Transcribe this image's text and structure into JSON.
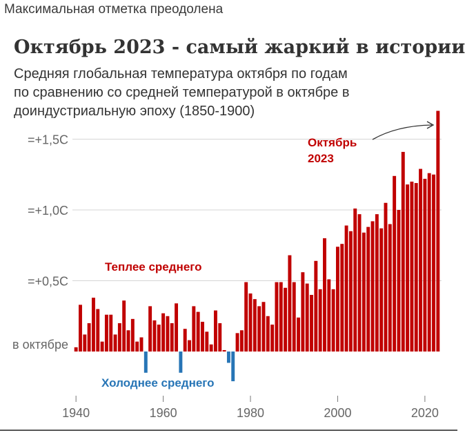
{
  "headline": "Максимальная отметка преодолена",
  "chart_data": {
    "type": "bar",
    "title": "Октябрь 2023 - самый жаркий в истории",
    "subtitle": [
      "Средняя глобальная температура октября по годам",
      "по сравнению со средней температурой в октябре в",
      "доиндустриальную эпоху (1850-1900)"
    ],
    "x": [
      1940,
      1941,
      1942,
      1943,
      1944,
      1945,
      1946,
      1947,
      1948,
      1949,
      1950,
      1951,
      1952,
      1953,
      1954,
      1955,
      1956,
      1957,
      1958,
      1959,
      1960,
      1961,
      1962,
      1963,
      1964,
      1965,
      1966,
      1967,
      1968,
      1969,
      1970,
      1971,
      1972,
      1973,
      1974,
      1975,
      1976,
      1977,
      1978,
      1979,
      1980,
      1981,
      1982,
      1983,
      1984,
      1985,
      1986,
      1987,
      1988,
      1989,
      1990,
      1991,
      1992,
      1993,
      1994,
      1995,
      1996,
      1997,
      1998,
      1999,
      2000,
      2001,
      2002,
      2003,
      2004,
      2005,
      2006,
      2007,
      2008,
      2009,
      2010,
      2011,
      2012,
      2013,
      2014,
      2015,
      2016,
      2017,
      2018,
      2019,
      2020,
      2021,
      2022,
      2023
    ],
    "values": [
      0.03,
      0.33,
      0.12,
      0.2,
      0.38,
      0.3,
      0.07,
      0.26,
      0.26,
      0.12,
      0.2,
      0.36,
      0.15,
      0.23,
      0.07,
      0.1,
      -0.15,
      0.32,
      0.22,
      0.19,
      0.27,
      0.25,
      0.2,
      0.34,
      -0.15,
      0.16,
      0.08,
      0.32,
      0.28,
      0.21,
      0.14,
      0.05,
      0.29,
      0.2,
      0.01,
      -0.08,
      -0.21,
      0.13,
      0.15,
      0.49,
      0.41,
      0.37,
      0.32,
      0.35,
      0.25,
      0.19,
      0.49,
      0.49,
      0.45,
      0.68,
      0.49,
      0.24,
      0.56,
      0.48,
      0.4,
      0.64,
      0.44,
      0.8,
      0.51,
      0.44,
      0.74,
      0.76,
      0.89,
      0.85,
      1.01,
      0.97,
      0.84,
      0.88,
      0.92,
      0.97,
      0.87,
      1.05,
      0.9,
      1.24,
      1.0,
      1.41,
      1.18,
      1.2,
      1.19,
      1.29,
      1.22,
      1.26,
      1.25,
      1.7
    ],
    "xlim": [
      1940,
      2023
    ],
    "x_ticks": [
      "1940",
      "1960",
      "1980",
      "2000",
      "2020"
    ],
    "y_ticks": [
      "=+1,5C",
      "=+1,0C",
      "=+0,5C"
    ],
    "baseline_label": "в октябре",
    "annotations": {
      "warmer": "Теплее среднего",
      "colder": "Холоднее среднего",
      "record": [
        "Октябрь",
        "2023"
      ]
    },
    "colors": {
      "positive": "#c00000",
      "negative": "#2775b6",
      "grid": "#d5d5d5",
      "tick_text": "#666666"
    }
  }
}
